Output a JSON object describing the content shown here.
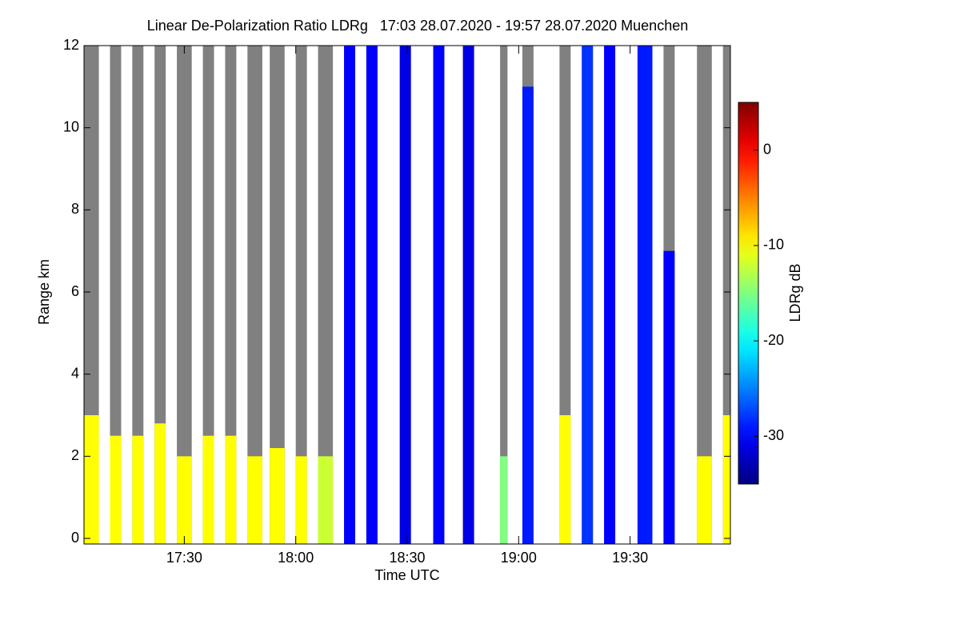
{
  "chart_data": {
    "type": "heatmap",
    "title": "Linear De-Polarization Ratio LDRg   17:03 28.07.2020 - 19:57 28.07.2020 Muenchen",
    "x_label": "Time UTC",
    "y_label": "Range km",
    "colorbar_label": "LDRg dB",
    "colormap": "jet",
    "nodata_color": "#808080",
    "xlim": [
      "17:03",
      "19:57"
    ],
    "xticks": [
      "17:30",
      "18:00",
      "18:30",
      "19:00",
      "19:30"
    ],
    "ylim": [
      0,
      12
    ],
    "yticks": [
      0,
      2,
      4,
      6,
      8,
      10,
      12
    ],
    "clim": [
      -35,
      5
    ],
    "cticks": [
      0,
      -10,
      -20,
      -30
    ],
    "segments": [
      {
        "start": "17:03",
        "end": "17:07",
        "top": 3,
        "ldr": -10
      },
      {
        "start": "17:10",
        "end": "17:13",
        "top": 2.5,
        "ldr": -10
      },
      {
        "start": "17:16",
        "end": "17:19",
        "top": 2.5,
        "ldr": -10
      },
      {
        "start": "17:22",
        "end": "17:25",
        "top": 2.8,
        "ldr": -10
      },
      {
        "start": "17:28",
        "end": "17:32",
        "top": 2,
        "ldr": -10
      },
      {
        "start": "17:35",
        "end": "17:38",
        "top": 2.5,
        "ldr": -10
      },
      {
        "start": "17:41",
        "end": "17:44",
        "top": 2.5,
        "ldr": -10
      },
      {
        "start": "17:47",
        "end": "17:51",
        "top": 2,
        "ldr": -10
      },
      {
        "start": "17:53",
        "end": "17:57",
        "top": 2.2,
        "ldr": -10
      },
      {
        "start": "18:00",
        "end": "18:03",
        "top": 2,
        "ldr": -10
      },
      {
        "start": "18:06",
        "end": "18:10",
        "top": 2,
        "ldr": -12
      },
      {
        "start": "18:13",
        "end": "18:16",
        "top": 12,
        "ldr": -30
      },
      {
        "start": "18:19",
        "end": "18:22",
        "top": 12,
        "ldr": -30
      },
      {
        "start": "18:28",
        "end": "18:31",
        "top": 12,
        "ldr": -31
      },
      {
        "start": "18:37",
        "end": "18:40",
        "top": 12,
        "ldr": -30
      },
      {
        "start": "18:45",
        "end": "18:48",
        "top": 12,
        "ldr": -31
      },
      {
        "start": "18:55",
        "end": "18:57",
        "top": 2,
        "ldr": -15
      },
      {
        "start": "19:01",
        "end": "19:04",
        "top": 11,
        "ldr": -29
      },
      {
        "start": "19:11",
        "end": "19:14",
        "top": 3,
        "ldr": -10
      },
      {
        "start": "19:17",
        "end": "19:20",
        "top": 12,
        "ldr": -28
      },
      {
        "start": "19:23",
        "end": "19:26",
        "top": 12,
        "ldr": -30
      },
      {
        "start": "19:32",
        "end": "19:36",
        "top": 12,
        "ldr": -29
      },
      {
        "start": "19:39",
        "end": "19:42",
        "top": 7,
        "ldr": -30
      },
      {
        "start": "19:48",
        "end": "19:52",
        "top": 2,
        "ldr": -10
      },
      {
        "start": "19:55",
        "end": "19:57",
        "top": 3,
        "ldr": -10
      }
    ]
  }
}
